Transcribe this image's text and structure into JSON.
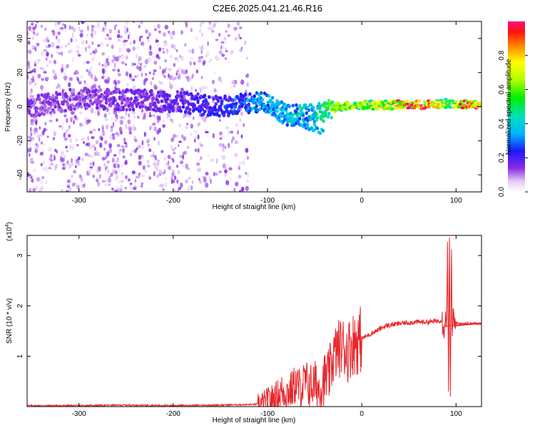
{
  "title": "C2E6.2025.041.21.46.R16",
  "chart_data": [
    {
      "type": "heatmap",
      "xlabel": "Height of straight line (km)",
      "ylabel": "Frequency (Hz)",
      "xlim": [
        -355,
        127
      ],
      "ylim": [
        -50,
        50
      ],
      "xticks": [
        -300,
        -200,
        -100,
        0,
        100
      ],
      "yticks": [
        -40,
        -20,
        0,
        20,
        40
      ],
      "colorbar": {
        "label": "Normalized spectral amplitude",
        "range": [
          0,
          1
        ],
        "ticks": [
          0.0,
          0.2,
          0.4,
          0.6,
          0.8
        ],
        "tick_labels": [
          "0.0",
          "0.2",
          "0.4",
          "0.6",
          "0.8"
        ]
      },
      "description_points": [
        {
          "x": -350,
          "y": 0,
          "amplitude": 0.15
        },
        {
          "x": -300,
          "y": 5,
          "amplitude": 0.15
        },
        {
          "x": -200,
          "y": 3,
          "amplitude": 0.2
        },
        {
          "x": -150,
          "y": 0,
          "amplitude": 0.25
        },
        {
          "x": -100,
          "y": 3,
          "amplitude": 0.4
        },
        {
          "x": -80,
          "y": -5,
          "amplitude": 0.4
        },
        {
          "x": -50,
          "y": -5,
          "amplitude": 0.45
        },
        {
          "x": -25,
          "y": 0,
          "amplitude": 0.7
        },
        {
          "x": 0,
          "y": 1,
          "amplitude": 0.75
        },
        {
          "x": 25,
          "y": 1,
          "amplitude": 0.75
        },
        {
          "x": 50,
          "y": 1,
          "amplitude": 0.95
        },
        {
          "x": 75,
          "y": 1,
          "amplitude": 0.95
        },
        {
          "x": 90,
          "y": 2,
          "amplitude": 0.6
        },
        {
          "x": 110,
          "y": 1,
          "amplitude": 0.95
        },
        {
          "x": 125,
          "y": 1,
          "amplitude": 0.95
        }
      ]
    },
    {
      "type": "line",
      "xlabel": "Height of straight line (km)",
      "ylabel": "SNR (10 * v/v)",
      "y_multiplier_label": "(x10",
      "y_multiplier_exp": "4",
      "y_multiplier_close": ")",
      "xlim": [
        -355,
        127
      ],
      "ylim": [
        0,
        3.4
      ],
      "xticks": [
        -300,
        -200,
        -100,
        0,
        100
      ],
      "yticks": [
        1,
        2,
        3
      ],
      "series": [
        {
          "color": "#e8262a",
          "x": [
            -355,
            -300,
            -250,
            -200,
            -150,
            -120,
            -105,
            -100,
            -95,
            -90,
            -85,
            -80,
            -75,
            -70,
            -65,
            -60,
            -55,
            -50,
            -45,
            -40,
            -35,
            -30,
            -25,
            -20,
            -15,
            -10,
            -5,
            0,
            5,
            10,
            15,
            20,
            25,
            30,
            40,
            50,
            60,
            70,
            80,
            85,
            88,
            90,
            91,
            92,
            93,
            94,
            95,
            96,
            97,
            98,
            100,
            105,
            110,
            115,
            120,
            127
          ],
          "y": [
            0.02,
            0.02,
            0.03,
            0.02,
            0.03,
            0.04,
            0.05,
            0.1,
            0.15,
            0.2,
            0.3,
            0.28,
            0.32,
            0.45,
            0.35,
            0.5,
            0.4,
            0.45,
            0.35,
            0.55,
            0.6,
            1.0,
            1.15,
            1.2,
            1.1,
            1.25,
            1.3,
            1.35,
            1.4,
            1.45,
            1.5,
            1.55,
            1.6,
            1.62,
            1.65,
            1.67,
            1.68,
            1.68,
            1.7,
            1.72,
            1.6,
            1.8,
            3.2,
            0.3,
            3.3,
            0.2,
            3.0,
            1.4,
            1.9,
            1.6,
            1.66,
            1.65,
            1.66,
            1.65,
            1.65,
            1.65
          ]
        }
      ]
    }
  ]
}
